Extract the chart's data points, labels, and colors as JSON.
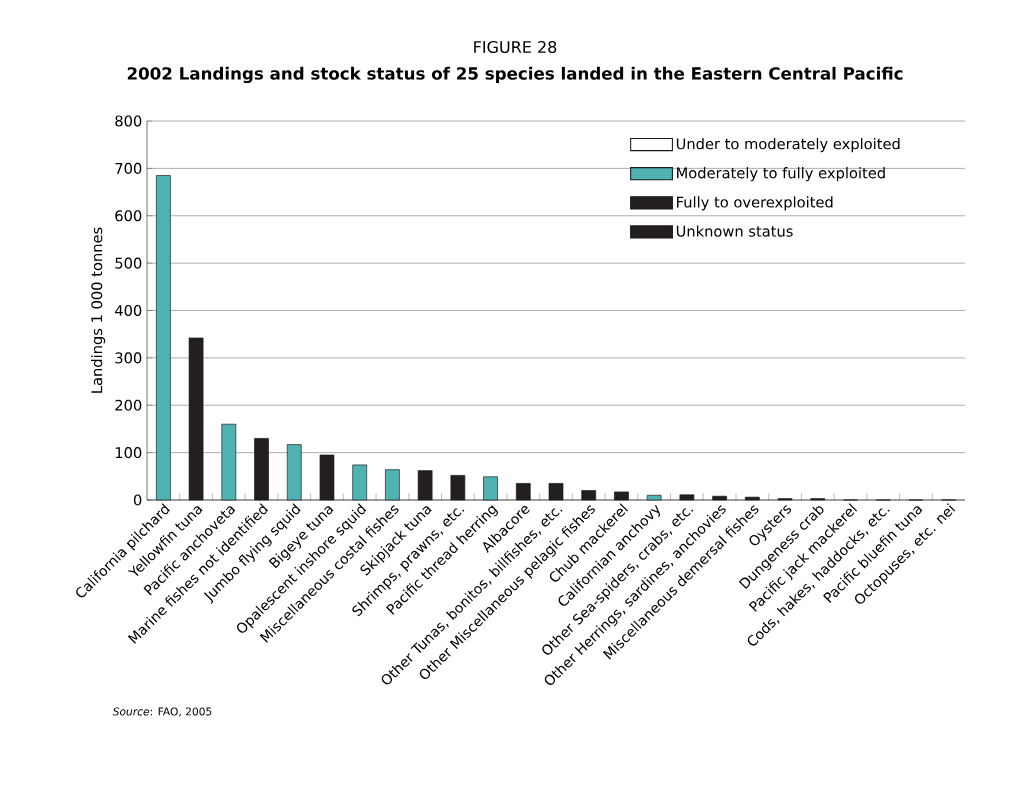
{
  "chart_data": {
    "type": "bar",
    "title": "FIGURE 28",
    "subtitle": "2002 Landings and stock status of 25 species landed in the Eastern Central Pacific",
    "ylabel": "Landings 1 000 tonnes",
    "categories": [
      "California pilchard",
      "Yellowfin tuna",
      "Pacific anchoveta",
      "Marine fishes not identified",
      "Jumbo flying squid",
      "Bigeye tuna",
      "Opalescent inshore squid",
      "Miscellaneous costal fishes",
      "Skipjack tuna",
      "Shrimps, prawns, etc.",
      "Pacific thread herring",
      "Albacore",
      "Other Tunas, bonitos, billfishes, etc.",
      "Other Miscellaneous pelagic fishes",
      "Chub mackerel",
      "Californian anchovy",
      "Other Sea-spiders, crabs, etc.",
      "Other Herrings, sardines, anchovies",
      "Miscellaneous demersal fishes",
      "Oysters",
      "Dungeness crab",
      "Pacific jack mackerel",
      "Cods, hakes, haddocks, etc.",
      "Pacific bluefin tuna",
      "Octopuses, etc. nei"
    ],
    "series": [
      {
        "name": "Under to moderately exploited",
        "color": "#ffffff",
        "values": [
          null,
          null,
          null,
          null,
          null,
          null,
          null,
          null,
          null,
          null,
          null,
          null,
          null,
          null,
          null,
          null,
          null,
          null,
          null,
          null,
          null,
          null,
          null,
          null,
          null
        ]
      },
      {
        "name": "Moderately to fully exploited",
        "color": "#4fb3b3",
        "values": [
          685,
          null,
          160,
          null,
          117,
          null,
          74,
          64,
          null,
          null,
          49,
          null,
          null,
          null,
          null,
          10,
          null,
          null,
          null,
          null,
          null,
          null,
          null,
          null,
          null
        ]
      },
      {
        "name": "Fully to overexploited",
        "color": "#231f20",
        "values": [
          null,
          342,
          null,
          130,
          null,
          95,
          null,
          null,
          62,
          52,
          null,
          35,
          35,
          20,
          17,
          null,
          11,
          8,
          6,
          3,
          3,
          0,
          0,
          0,
          0
        ]
      },
      {
        "name": "Unknown status",
        "color": "#231f20",
        "values": [
          null,
          null,
          null,
          null,
          null,
          null,
          null,
          null,
          null,
          null,
          null,
          null,
          null,
          null,
          null,
          null,
          null,
          null,
          null,
          null,
          null,
          null,
          null,
          null,
          null
        ]
      }
    ],
    "ylim": [
      0,
      800
    ],
    "yticks": [
      0,
      100,
      200,
      300,
      400,
      500,
      600,
      700,
      800
    ],
    "grid": "y",
    "legend": "top right",
    "annotations": [
      "*Source*: FAO, 2005"
    ]
  }
}
